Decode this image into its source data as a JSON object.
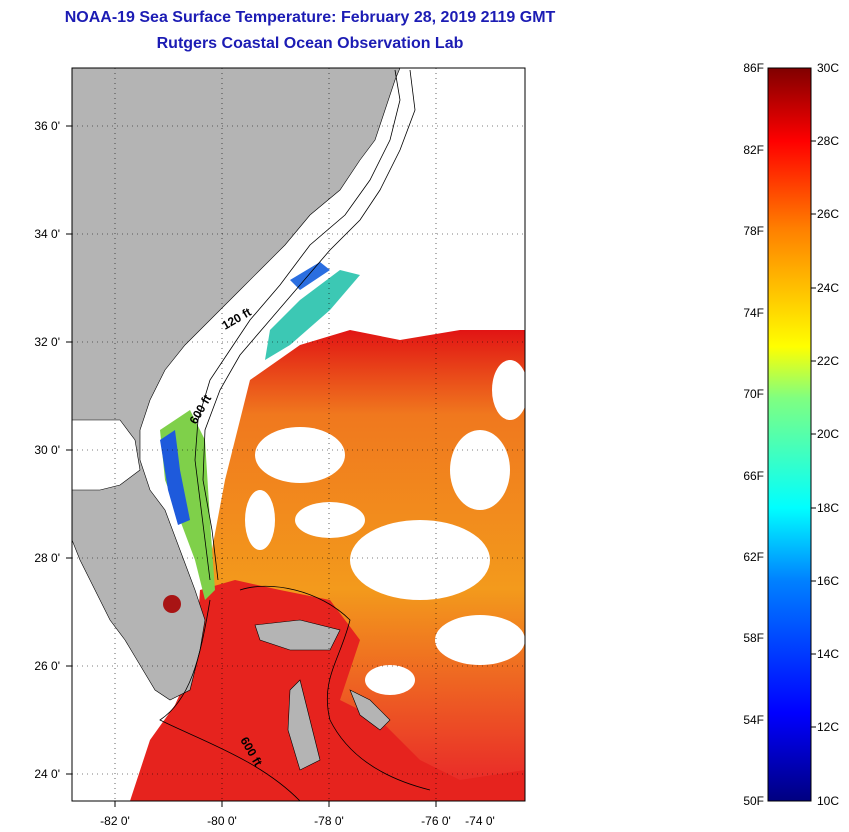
{
  "header": {
    "title": "NOAA-19 Sea Surface Temperature:  February 28, 2019 2119 GMT",
    "subtitle": "Rutgers Coastal Ocean Observation Lab"
  },
  "map": {
    "lat_labels": [
      "36 0'",
      "34 0'",
      "32 0'",
      "30 0'",
      "28 0'",
      "26 0'",
      "24 0'"
    ],
    "lon_labels": [
      "-82 0'",
      "-80 0'",
      "-78 0'",
      "-76 0'",
      "-74 0'"
    ],
    "isobath_labels": [
      "120 ft",
      "600 ft",
      "600 ft"
    ],
    "land_color": "#b4b4b4",
    "cloud_color": "#ffffff"
  },
  "colorbar": {
    "f_labels": [
      "86F",
      "82F",
      "78F",
      "74F",
      "70F",
      "66F",
      "62F",
      "58F",
      "54F",
      "50F"
    ],
    "c_labels": [
      "30C",
      "28C",
      "26C",
      "24C",
      "22C",
      "20C",
      "18C",
      "16C",
      "14C",
      "12C",
      "10C"
    ],
    "colors": [
      "#000080",
      "#0000ff",
      "#0080ff",
      "#00ffff",
      "#80ff80",
      "#ffff00",
      "#ff8000",
      "#ff0000",
      "#800000"
    ]
  }
}
